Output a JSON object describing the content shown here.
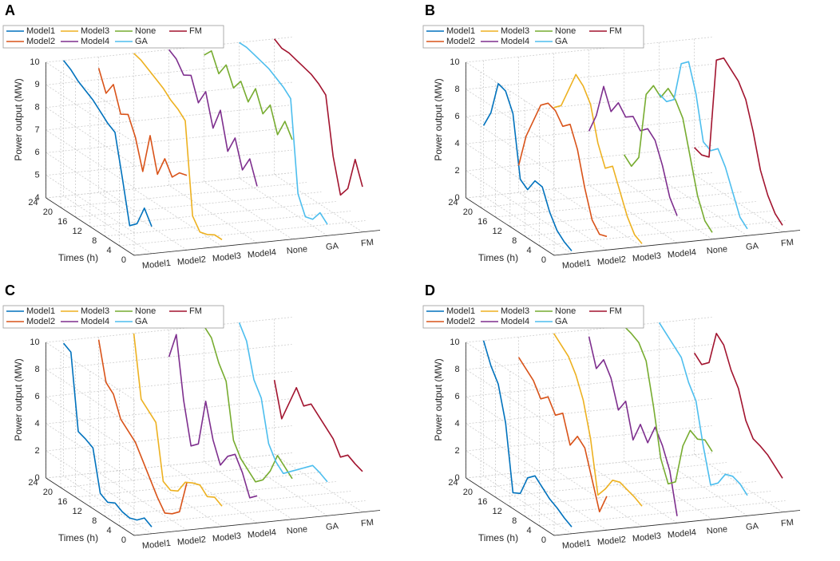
{
  "chart_data": [
    {
      "type": "line3d",
      "panel_label": "A",
      "legend": "upper left",
      "grid": true,
      "categories": [
        "Model1",
        "Model2",
        "Model3",
        "Model4",
        "None",
        "GA",
        "FM"
      ],
      "ylabel": "Times (h)",
      "zlabel": "Power output (MW)",
      "x": [
        0,
        2,
        4,
        6,
        8,
        10,
        12,
        14,
        16,
        18,
        20,
        22,
        24
      ],
      "xlim": [
        0,
        24
      ],
      "xticks": [
        0,
        4,
        8,
        12,
        16,
        20,
        24
      ],
      "zlim": [
        4,
        10
      ],
      "zticks": [
        4,
        5,
        6,
        7,
        8,
        9,
        10
      ],
      "series": [
        {
          "name": "Model1",
          "color": "#0072BD",
          "values": [
            5.2,
            5.8,
            4.9,
            4.6,
            6.5,
            8.3,
            8.5,
            8.8,
            9.1,
            9.3,
            9.5,
            9.8,
            10.0
          ]
        },
        {
          "name": "Model2",
          "color": "#D95319",
          "values": [
            7.3,
            7.2,
            6.8,
            7.4,
            6.5,
            8.0,
            6.2,
            7.5,
            8.3,
            8.1,
            9.2,
            8.6,
            9.5
          ]
        },
        {
          "name": "Model3",
          "color": "#EDB120",
          "values": [
            4.3,
            4.3,
            4.1,
            4.0,
            4.5,
            8.5,
            8.8,
            9.0,
            9.3,
            9.5,
            9.7,
            9.9,
            10.0
          ]
        },
        {
          "name": "Model4",
          "color": "#7E2F8E",
          "values": [
            6.5,
            7.5,
            6.8,
            8.0,
            7.2,
            8.8,
            7.8,
            9.2,
            8.5,
            9.5,
            9.3,
            9.8,
            10.0
          ]
        },
        {
          "name": "None",
          "color": "#77AC30",
          "values": [
            8.4,
            9.0,
            8.2,
            9.3,
            8.7,
            9.6,
            8.8,
            9.5,
            9.0,
            9.8,
            9.2,
            10.0,
            9.6
          ]
        },
        {
          "name": "GA",
          "color": "#4DBEEE",
          "values": [
            4.5,
            4.8,
            4.3,
            4.2,
            5.0,
            9.0,
            9.3,
            9.5,
            9.7,
            9.8,
            9.9,
            10.0,
            10.0
          ]
        },
        {
          "name": "FM",
          "color": "#A2142F",
          "values": [
            6.0,
            7.0,
            5.5,
            5.0,
            6.5,
            9.0,
            9.3,
            9.5,
            9.6,
            9.7,
            9.8,
            9.8,
            10.0
          ]
        }
      ]
    },
    {
      "type": "line3d",
      "panel_label": "B",
      "legend": "upper left",
      "grid": true,
      "categories": [
        "Model1",
        "Model2",
        "Model3",
        "Model4",
        "None",
        "GA",
        "FM"
      ],
      "ylabel": "Times (h)",
      "zlabel": "Power output (MW)",
      "x": [
        0,
        2,
        4,
        6,
        8,
        10,
        12,
        14,
        16,
        18,
        20,
        22,
        24
      ],
      "xlim": [
        0,
        24
      ],
      "xticks": [
        0,
        4,
        8,
        12,
        16,
        20,
        24
      ],
      "zlim": [
        0,
        10
      ],
      "zticks": [
        0,
        2,
        4,
        6,
        8,
        10
      ],
      "series": [
        {
          "name": "Model1",
          "color": "#0072BD",
          "values": [
            0.2,
            0.5,
            1.0,
            2.0,
            3.5,
            3.6,
            2.6,
            3.0,
            7.5,
            8.8,
            9.0,
            6.5,
            5.2
          ]
        },
        {
          "name": "Model2",
          "color": "#D95319",
          "values": [
            1.0,
            0.8,
            1.5,
            3.5,
            6.0,
            7.5,
            7.0,
            7.8,
            8.0,
            7.5,
            6.0,
            4.5,
            2.0
          ]
        },
        {
          "name": "Model3",
          "color": "#EDB120",
          "values": [
            0.2,
            0.5,
            1.5,
            3.0,
            4.5,
            4.0,
            5.5,
            8.0,
            9.0,
            9.5,
            8.0,
            6.5,
            6.0
          ]
        },
        {
          "name": "Model4",
          "color": "#7E2F8E",
          "values": [
            2.0,
            3.0,
            5.0,
            6.5,
            7.0,
            6.5,
            7.2,
            6.8,
            7.5,
            6.5,
            8.0,
            5.5,
            4.0
          ]
        },
        {
          "name": "None",
          "color": "#77AC30",
          "values": [
            0.5,
            1.0,
            2.5,
            5.0,
            7.5,
            8.5,
            9.0,
            8.0,
            8.5,
            7.5,
            2.5,
            1.5,
            2.0
          ]
        },
        {
          "name": "GA",
          "color": "#4DBEEE",
          "values": [
            0.5,
            1.0,
            2.5,
            4.0,
            5.0,
            4.5,
            4.8,
            8.0,
            10.0,
            9.5,
            6.5,
            6.0,
            6.2
          ]
        },
        {
          "name": "FM",
          "color": "#A2142F",
          "values": [
            0.5,
            1.0,
            2.0,
            3.5,
            6.0,
            8.0,
            9.0,
            9.5,
            10.0,
            9.5,
            2.0,
            1.8,
            2.0
          ]
        }
      ]
    },
    {
      "type": "line3d",
      "panel_label": "C",
      "legend": "upper left",
      "grid": true,
      "categories": [
        "Model1",
        "Model2",
        "Model3",
        "Model4",
        "None",
        "GA",
        "FM"
      ],
      "ylabel": "Times (h)",
      "zlabel": "Power output (MW)",
      "x": [
        0,
        2,
        4,
        6,
        8,
        10,
        12,
        14,
        16,
        18,
        20,
        22,
        24
      ],
      "xlim": [
        0,
        24
      ],
      "xticks": [
        0,
        4,
        8,
        12,
        16,
        20,
        24
      ],
      "zlim": [
        0,
        10
      ],
      "zticks": [
        0,
        2,
        4,
        6,
        8,
        10
      ],
      "series": [
        {
          "name": "Model1",
          "color": "#0072BD",
          "values": [
            0.5,
            0.8,
            0.3,
            0.1,
            0.2,
            0.5,
            0.2,
            0.5,
            3.5,
            3.8,
            4.0,
            9.5,
            9.8
          ]
        },
        {
          "name": "Model2",
          "color": "#D95319",
          "values": [
            3.5,
            1.0,
            0.5,
            0.2,
            1.0,
            2.0,
            3.0,
            4.0,
            4.5,
            5.0,
            6.5,
            7.0,
            9.8
          ]
        },
        {
          "name": "Model3",
          "color": "#EDB120",
          "values": [
            1.5,
            1.8,
            1.5,
            2.0,
            1.8,
            1.5,
            0.5,
            0.2,
            0.5,
            4.5,
            5.0,
            5.5,
            10.0
          ]
        },
        {
          "name": "Model4",
          "color": "#7E2F8E",
          "values": [
            2.0,
            1.5,
            3.0,
            4.0,
            3.5,
            2.5,
            4.0,
            6.5,
            3.0,
            2.5,
            5.5,
            10.0,
            8.0
          ]
        },
        {
          "name": "None",
          "color": "#77AC30",
          "values": [
            3.0,
            3.5,
            4.0,
            2.5,
            1.5,
            1.0,
            1.5,
            2.0,
            3.0,
            7.0,
            8.0,
            9.5,
            10.0
          ]
        },
        {
          "name": "GA",
          "color": "#4DBEEE",
          "values": [
            2.5,
            2.8,
            3.0,
            2.5,
            2.0,
            1.5,
            1.0,
            1.5,
            2.5,
            5.5,
            6.5,
            9.0,
            10.0
          ]
        },
        {
          "name": "FM",
          "color": "#A2142F",
          "values": [
            3.0,
            3.2,
            3.5,
            3.0,
            4.0,
            4.5,
            5.0,
            5.5,
            5.0,
            6.0,
            4.5,
            3.0,
            5.5
          ]
        }
      ]
    },
    {
      "type": "line3d",
      "panel_label": "D",
      "legend": "upper left",
      "grid": true,
      "categories": [
        "Model1",
        "Model2",
        "Model3",
        "Model4",
        "None",
        "GA",
        "FM"
      ],
      "ylabel": "Times (h)",
      "zlabel": "Power output (MW)",
      "x": [
        0,
        2,
        4,
        6,
        8,
        10,
        12,
        14,
        16,
        18,
        20,
        22,
        24
      ],
      "xlim": [
        0,
        24
      ],
      "xticks": [
        0,
        4,
        8,
        12,
        16,
        20,
        24
      ],
      "zlim": [
        0,
        10
      ],
      "zticks": [
        0,
        2,
        4,
        6,
        8,
        10
      ],
      "series": [
        {
          "name": "Model1",
          "color": "#0072BD",
          "values": [
            0.5,
            0.8,
            1.2,
            1.5,
            2.0,
            2.5,
            2.0,
            0.5,
            0.2,
            5.0,
            7.5,
            8.5,
            10.0
          ]
        },
        {
          "name": "Model2",
          "color": "#D95319",
          "values": [
            2.5,
            1.0,
            3.0,
            5.0,
            5.5,
            4.5,
            6.5,
            6.0,
            7.0,
            6.5,
            7.5,
            8.0,
            8.5
          ]
        },
        {
          "name": "Model3",
          "color": "#EDB120",
          "values": [
            1.5,
            1.8,
            2.0,
            2.2,
            2.0,
            1.0,
            0.2,
            4.0,
            6.5,
            8.0,
            9.0,
            9.5,
            10.0
          ]
        },
        {
          "name": "Model4",
          "color": "#7E2F8E",
          "values": [
            0.5,
            3.5,
            5.0,
            6.0,
            4.5,
            5.5,
            4.0,
            6.5,
            5.5,
            7.5,
            8.5,
            7.5,
            9.5
          ]
        },
        {
          "name": "None",
          "color": "#77AC30",
          "values": [
            5.0,
            5.5,
            5.2,
            5.5,
            4.0,
            1.0,
            0.5,
            2.0,
            5.5,
            8.5,
            9.5,
            9.8,
            10.0
          ]
        },
        {
          "name": "GA",
          "color": "#4DBEEE",
          "values": [
            1.5,
            2.0,
            2.2,
            2.0,
            1.0,
            0.5,
            3.0,
            6.0,
            7.0,
            8.5,
            9.0,
            9.5,
            10.0
          ]
        },
        {
          "name": "FM",
          "color": "#A2142F",
          "values": [
            2.5,
            3.0,
            3.5,
            3.8,
            4.0,
            5.0,
            7.0,
            8.0,
            9.5,
            10.0,
            7.5,
            7.0,
            7.5
          ]
        }
      ]
    }
  ]
}
